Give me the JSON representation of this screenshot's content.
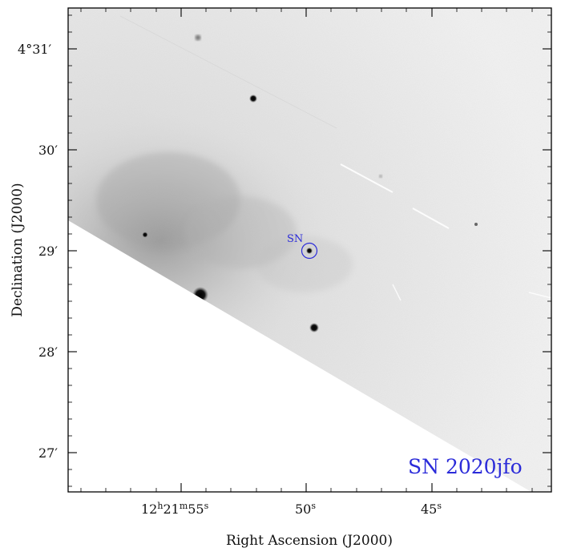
{
  "image": {
    "target_name": "SN 2020jfo",
    "marker_label": "SN",
    "marker_color": "#2b2bd9",
    "colormap": "inverted grayscale"
  },
  "axes": {
    "xlabel": "Right Ascension (J2000)",
    "ylabel": "Declination (J2000)",
    "x_ticks": [
      {
        "base": "12",
        "h": "h",
        "base2": "21",
        "m": "m",
        "base3": "55",
        "s": "s"
      },
      {
        "base": "50",
        "s": "s"
      },
      {
        "base": "45",
        "s": "s"
      }
    ],
    "y_ticks": [
      {
        "deg": "4",
        "sym": "°",
        "min": "31",
        "prime": "′"
      },
      {
        "min": "30",
        "prime": "′"
      },
      {
        "min": "29",
        "prime": "′"
      },
      {
        "min": "28",
        "prime": "′"
      },
      {
        "min": "27",
        "prime": "′"
      }
    ]
  }
}
